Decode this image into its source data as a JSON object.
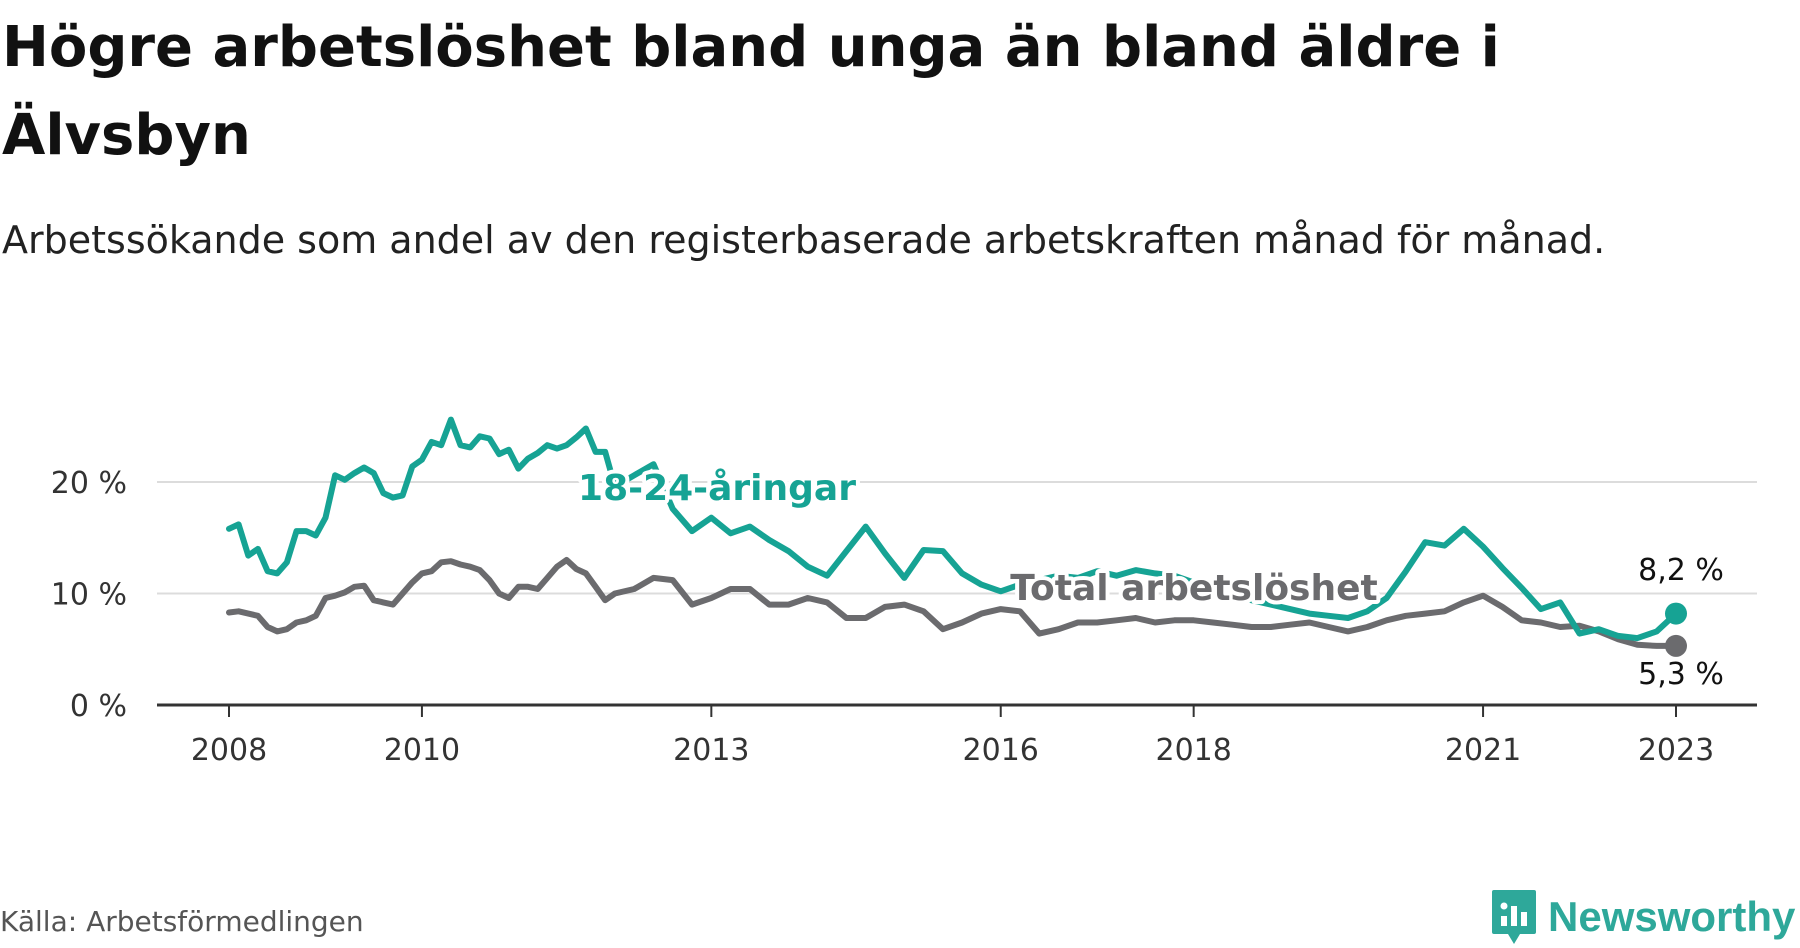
{
  "header": {
    "title": "Högre arbetslöshet bland unga än bland äldre i Älvsbyn",
    "subtitle": "Arbetssökande som andel av den registerbaserade arbetskraften månad för månad."
  },
  "footer": {
    "source": "Källa: Arbetsförmedlingen",
    "brand": "Newsworthy"
  },
  "colors": {
    "youth": "#16a394",
    "total": "#6b6b6e",
    "axis": "#333333",
    "grid": "#dcdcdc"
  },
  "chart_data": {
    "type": "line",
    "title": "Högre arbetslöshet bland unga än bland äldre i Älvsbyn",
    "xlabel": "",
    "ylabel": "",
    "xlim": [
      2007.7,
      2024.0
    ],
    "ylim": [
      0,
      20
    ],
    "y_ticks": [
      0,
      10,
      20
    ],
    "y_tick_labels": [
      "0 %",
      "10 %",
      "20 %"
    ],
    "x_ticks": [
      2008,
      2010,
      2013,
      2016,
      2018,
      2021,
      2023
    ],
    "x_tick_labels": [
      "2008",
      "2010",
      "2013",
      "2016",
      "2018",
      "2021",
      "2023"
    ],
    "series": [
      {
        "name": "18-24-åringar",
        "color": "#16a394",
        "end_label": "8,2 %",
        "x": [
          2008.0,
          2008.1,
          2008.2,
          2008.3,
          2008.4,
          2008.5,
          2008.6,
          2008.7,
          2008.8,
          2008.9,
          2009.0,
          2009.1,
          2009.2,
          2009.3,
          2009.4,
          2009.5,
          2009.6,
          2009.7,
          2009.8,
          2009.9,
          2010.0,
          2010.1,
          2010.2,
          2010.3,
          2010.4,
          2010.5,
          2010.6,
          2010.7,
          2010.8,
          2010.9,
          2011.0,
          2011.1,
          2011.2,
          2011.3,
          2011.4,
          2011.5,
          2011.6,
          2011.7,
          2011.8,
          2011.9,
          2012.0,
          2012.2,
          2012.4,
          2012.6,
          2012.8,
          2013.0,
          2013.2,
          2013.4,
          2013.6,
          2013.8,
          2014.0,
          2014.2,
          2014.4,
          2014.6,
          2014.8,
          2015.0,
          2015.2,
          2015.4,
          2015.6,
          2015.8,
          2016.0,
          2016.2,
          2016.4,
          2016.6,
          2016.8,
          2017.0,
          2017.2,
          2017.4,
          2017.6,
          2017.8,
          2018.0,
          2018.2,
          2018.4,
          2018.6,
          2018.8,
          2019.0,
          2019.2,
          2019.4,
          2019.6,
          2019.8,
          2020.0,
          2020.2,
          2020.4,
          2020.6,
          2020.8,
          2021.0,
          2021.2,
          2021.4,
          2021.6,
          2021.8,
          2022.0,
          2022.2,
          2022.4,
          2022.6,
          2022.8,
          2023.0
        ],
        "values": [
          15.8,
          16.2,
          13.4,
          14.0,
          12.0,
          11.8,
          12.8,
          15.6,
          15.6,
          15.2,
          16.8,
          20.6,
          20.2,
          20.8,
          21.3,
          20.8,
          19.0,
          18.6,
          18.8,
          21.4,
          22.0,
          23.6,
          23.3,
          25.6,
          23.3,
          23.1,
          24.1,
          23.9,
          22.5,
          22.9,
          21.2,
          22.1,
          22.6,
          23.3,
          23.0,
          23.3,
          24.0,
          24.8,
          22.7,
          22.7,
          19.6,
          20.6,
          21.6,
          17.6,
          15.6,
          16.8,
          15.4,
          16.0,
          14.8,
          13.8,
          12.4,
          11.6,
          13.8,
          16.0,
          13.6,
          11.4,
          13.9,
          13.8,
          11.8,
          10.8,
          10.2,
          10.8,
          11.2,
          11.6,
          11.4,
          12.0,
          11.6,
          12.1,
          11.8,
          11.6,
          11.0,
          10.2,
          9.8,
          9.4,
          9.0,
          8.6,
          8.2,
          8.0,
          7.8,
          8.4,
          9.6,
          12.0,
          14.6,
          14.3,
          15.8,
          14.2,
          12.3,
          10.5,
          8.6,
          9.2,
          6.4,
          6.8,
          6.2,
          6.0,
          6.6,
          8.2
        ]
      },
      {
        "name": "Total arbetslöshet",
        "color": "#6b6b6e",
        "end_label": "5,3 %",
        "x": [
          2008.0,
          2008.1,
          2008.2,
          2008.3,
          2008.4,
          2008.5,
          2008.6,
          2008.7,
          2008.8,
          2008.9,
          2009.0,
          2009.1,
          2009.2,
          2009.3,
          2009.4,
          2009.5,
          2009.6,
          2009.7,
          2009.8,
          2009.9,
          2010.0,
          2010.1,
          2010.2,
          2010.3,
          2010.4,
          2010.5,
          2010.6,
          2010.7,
          2010.8,
          2010.9,
          2011.0,
          2011.1,
          2011.2,
          2011.3,
          2011.4,
          2011.5,
          2011.6,
          2011.7,
          2011.8,
          2011.9,
          2012.0,
          2012.2,
          2012.4,
          2012.6,
          2012.8,
          2013.0,
          2013.2,
          2013.4,
          2013.6,
          2013.8,
          2014.0,
          2014.2,
          2014.4,
          2014.6,
          2014.8,
          2015.0,
          2015.2,
          2015.4,
          2015.6,
          2015.8,
          2016.0,
          2016.2,
          2016.4,
          2016.6,
          2016.8,
          2017.0,
          2017.2,
          2017.4,
          2017.6,
          2017.8,
          2018.0,
          2018.2,
          2018.4,
          2018.6,
          2018.8,
          2019.0,
          2019.2,
          2019.4,
          2019.6,
          2019.8,
          2020.0,
          2020.2,
          2020.4,
          2020.6,
          2020.8,
          2021.0,
          2021.2,
          2021.4,
          2021.6,
          2021.8,
          2022.0,
          2022.2,
          2022.4,
          2022.6,
          2022.8,
          2023.0
        ],
        "values": [
          8.3,
          8.4,
          8.2,
          8.0,
          7.0,
          6.6,
          6.8,
          7.4,
          7.6,
          8.0,
          9.6,
          9.8,
          10.1,
          10.6,
          10.7,
          9.4,
          9.2,
          9.0,
          10.0,
          11.0,
          11.8,
          12.0,
          12.8,
          12.9,
          12.6,
          12.4,
          12.1,
          11.2,
          10.0,
          9.6,
          10.6,
          10.6,
          10.4,
          11.4,
          12.4,
          13.0,
          12.2,
          11.8,
          10.6,
          9.4,
          10.0,
          10.4,
          11.4,
          11.2,
          9.0,
          9.6,
          10.4,
          10.4,
          9.0,
          9.0,
          9.6,
          9.2,
          7.8,
          7.8,
          8.8,
          9.0,
          8.4,
          6.8,
          7.4,
          8.2,
          8.6,
          8.4,
          6.4,
          6.8,
          7.4,
          7.4,
          7.6,
          7.8,
          7.4,
          7.6,
          7.6,
          7.4,
          7.2,
          7.0,
          7.0,
          7.2,
          7.4,
          7.0,
          6.6,
          7.0,
          7.6,
          8.0,
          8.2,
          8.4,
          9.2,
          9.8,
          8.8,
          7.6,
          7.4,
          7.0,
          7.1,
          6.6,
          5.9,
          5.4,
          5.3,
          5.3
        ]
      }
    ]
  }
}
